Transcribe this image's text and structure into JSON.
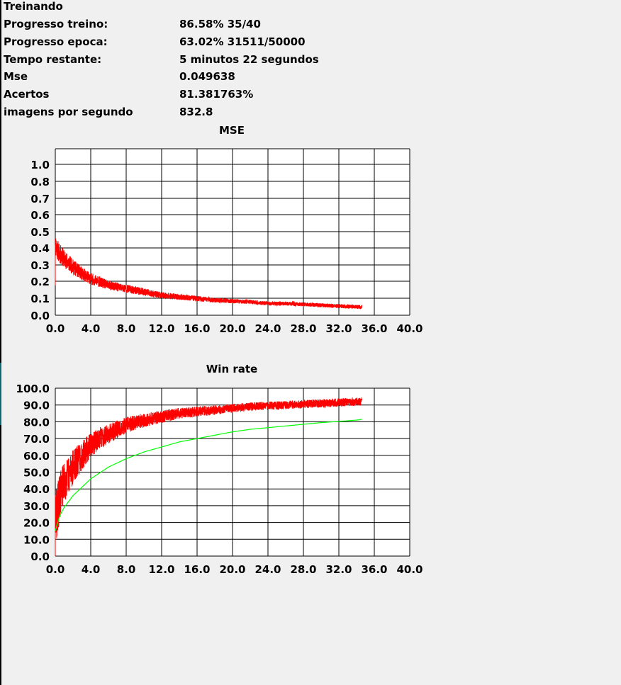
{
  "status": {
    "heading": "Treinando"
  },
  "stats": [
    {
      "label": "Progresso treino:",
      "value": "86.58% 35/40"
    },
    {
      "label": "Progresso epoca:",
      "value": "63.02% 31511/50000"
    },
    {
      "label": "Tempo restante:",
      "value": "5 minutos 22 segundos"
    },
    {
      "label": "Mse",
      "value": "0.049638"
    },
    {
      "label": "Acertos",
      "value": "81.381763%"
    },
    {
      "label": "imagens por segundo",
      "value": "832.8"
    }
  ],
  "chart_data": [
    {
      "type": "line",
      "title": "MSE",
      "xlabel": "",
      "ylabel": "",
      "xlim": [
        0,
        40
      ],
      "ylim": [
        0,
        1.0
      ],
      "x_ticks": [
        "0.0",
        "4.0",
        "8.0",
        "12.0",
        "16.0",
        "20.0",
        "24.0",
        "28.0",
        "32.0",
        "36.0",
        "40.0"
      ],
      "y_ticks": [
        "0.0",
        "0.1",
        "0.2",
        "0.3",
        "0.4",
        "0.5",
        "0.6",
        "0.7",
        "0.8",
        "1.0"
      ],
      "grid": true,
      "series": [
        {
          "color": "#ff0000",
          "x": [
            0,
            0.5,
            1,
            2,
            3,
            4,
            5,
            6,
            8,
            10,
            12,
            14,
            16,
            18,
            20,
            22,
            24,
            26,
            28,
            30,
            32,
            34,
            34.6
          ],
          "y": [
            0.42,
            0.37,
            0.34,
            0.29,
            0.25,
            0.22,
            0.2,
            0.18,
            0.16,
            0.14,
            0.12,
            0.11,
            0.1,
            0.09,
            0.085,
            0.08,
            0.07,
            0.07,
            0.065,
            0.06,
            0.055,
            0.05,
            0.05
          ]
        }
      ]
    },
    {
      "type": "line",
      "title": "Win rate",
      "xlabel": "",
      "ylabel": "",
      "xlim": [
        0,
        40
      ],
      "ylim": [
        0,
        100
      ],
      "x_ticks": [
        "0.0",
        "4.0",
        "8.0",
        "12.0",
        "16.0",
        "20.0",
        "24.0",
        "28.0",
        "32.0",
        "36.0",
        "40.0"
      ],
      "y_ticks": [
        "0.0",
        "10.0",
        "20.0",
        "30.0",
        "40.0",
        "50.0",
        "60.0",
        "70.0",
        "80.0",
        "90.0",
        "100.0"
      ],
      "grid": true,
      "series": [
        {
          "color": "#ff0000",
          "x": [
            0,
            0.3,
            0.6,
            1,
            2,
            3,
            4,
            5,
            6,
            8,
            10,
            12,
            14,
            16,
            18,
            20,
            22,
            24,
            26,
            28,
            30,
            32,
            34,
            34.6
          ],
          "y": [
            22,
            30,
            38,
            44,
            53,
            60,
            66,
            70,
            73,
            78,
            81,
            83,
            85,
            86,
            87,
            88,
            89,
            89.5,
            90,
            90.5,
            91,
            91.5,
            92,
            92
          ]
        },
        {
          "color": "#00ff00",
          "x": [
            0,
            0.5,
            1,
            2,
            3,
            4,
            6,
            8,
            10,
            12,
            14,
            16,
            18,
            20,
            22,
            24,
            26,
            28,
            30,
            32,
            34,
            34.6
          ],
          "y": [
            15,
            24,
            29,
            36,
            41,
            46,
            53,
            58,
            62,
            65,
            68,
            70,
            72,
            74,
            75.5,
            76.5,
            77.5,
            78.5,
            79.5,
            80.2,
            81,
            81.4
          ]
        }
      ]
    }
  ]
}
